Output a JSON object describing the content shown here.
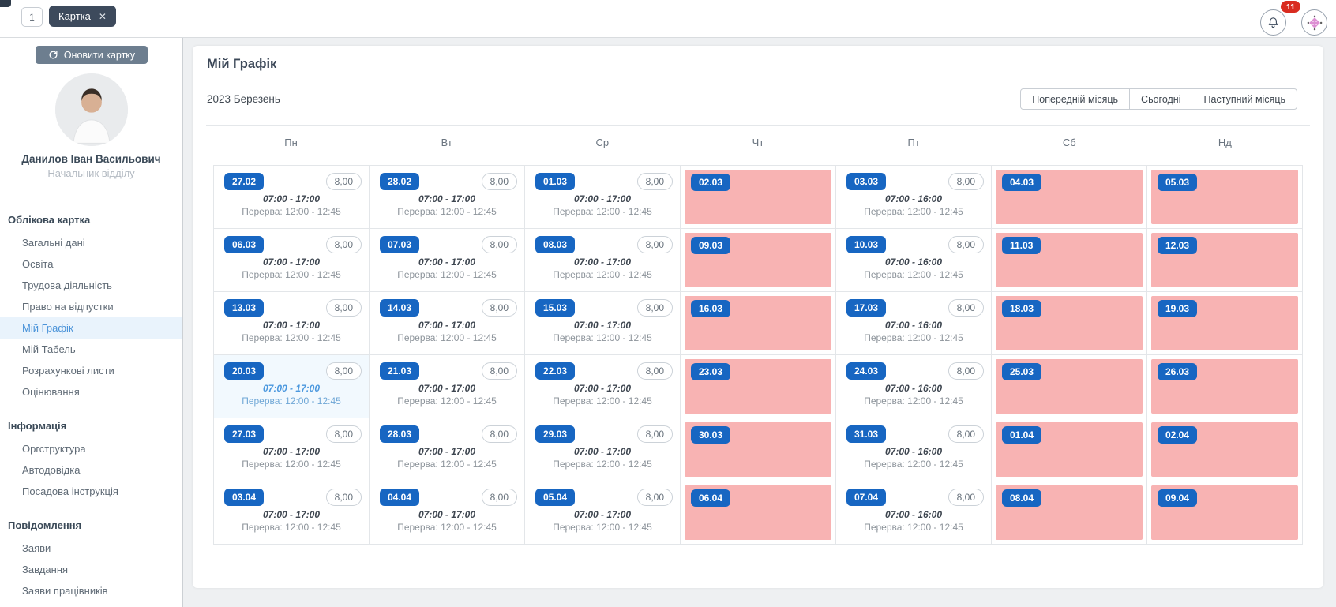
{
  "colors": {
    "accent_blue": "#1766c2",
    "off_pink": "#f8b3b3",
    "tab_dark": "#3d4a5c",
    "badge_red": "#d92c20",
    "active_link": "#4a93d9"
  },
  "topbar": {
    "tab_number": "1",
    "tab_label": "Картка",
    "close_glyph": "✕",
    "notification_count": "11"
  },
  "sidebar": {
    "update_button": "Оновити картку",
    "user": {
      "name": "Данилов Іван Васильович",
      "position": "Начальник відділу"
    },
    "sections": [
      {
        "title": "Облікова картка",
        "active": "Мій Графік",
        "items": [
          "Загальні дані",
          "Освіта",
          "Трудова діяльність",
          "Право на відпустки",
          "Мій Графік",
          "Мій Табель",
          "Розрахункові листи",
          "Оцінювання"
        ]
      },
      {
        "title": "Інформація",
        "items": [
          "Оргструктура",
          "Автодовідка",
          "Посадова інструкція"
        ]
      },
      {
        "title": "Повідомлення",
        "items": [
          "Заяви",
          "Завдання",
          "Заяви працівників"
        ]
      }
    ]
  },
  "schedule": {
    "title": "Мій Графік",
    "month_label": "2023 Березень",
    "nav": {
      "prev": "Попередній місяць",
      "today": "Сьогодні",
      "next": "Наступний місяць"
    },
    "weekdays": [
      "Пн",
      "Вт",
      "Ср",
      "Чт",
      "Пт",
      "Сб",
      "Нд"
    ],
    "weeks": [
      [
        {
          "date": "27.02",
          "type": "work",
          "hours": "8,00",
          "time": "07:00 - 17:00",
          "break_time": "Перерва: 12:00 - 12:45"
        },
        {
          "date": "28.02",
          "type": "work",
          "hours": "8,00",
          "time": "07:00 - 17:00",
          "break_time": "Перерва: 12:00 - 12:45"
        },
        {
          "date": "01.03",
          "type": "work",
          "hours": "8,00",
          "time": "07:00 - 17:00",
          "break_time": "Перерва: 12:00 - 12:45"
        },
        {
          "date": "02.03",
          "type": "off"
        },
        {
          "date": "03.03",
          "type": "work",
          "hours": "8,00",
          "time": "07:00 - 16:00",
          "break_time": "Перерва: 12:00 - 12:45"
        },
        {
          "date": "04.03",
          "type": "off"
        },
        {
          "date": "05.03",
          "type": "off"
        }
      ],
      [
        {
          "date": "06.03",
          "type": "work",
          "hours": "8,00",
          "time": "07:00 - 17:00",
          "break_time": "Перерва: 12:00 - 12:45"
        },
        {
          "date": "07.03",
          "type": "work",
          "hours": "8,00",
          "time": "07:00 - 17:00",
          "break_time": "Перерва: 12:00 - 12:45"
        },
        {
          "date": "08.03",
          "type": "work",
          "hours": "8,00",
          "time": "07:00 - 17:00",
          "break_time": "Перерва: 12:00 - 12:45"
        },
        {
          "date": "09.03",
          "type": "off"
        },
        {
          "date": "10.03",
          "type": "work",
          "hours": "8,00",
          "time": "07:00 - 16:00",
          "break_time": "Перерва: 12:00 - 12:45"
        },
        {
          "date": "11.03",
          "type": "off"
        },
        {
          "date": "12.03",
          "type": "off"
        }
      ],
      [
        {
          "date": "13.03",
          "type": "work",
          "hours": "8,00",
          "time": "07:00 - 17:00",
          "break_time": "Перерва: 12:00 - 12:45"
        },
        {
          "date": "14.03",
          "type": "work",
          "hours": "8,00",
          "time": "07:00 - 17:00",
          "break_time": "Перерва: 12:00 - 12:45"
        },
        {
          "date": "15.03",
          "type": "work",
          "hours": "8,00",
          "time": "07:00 - 17:00",
          "break_time": "Перерва: 12:00 - 12:45"
        },
        {
          "date": "16.03",
          "type": "off"
        },
        {
          "date": "17.03",
          "type": "work",
          "hours": "8,00",
          "time": "07:00 - 16:00",
          "break_time": "Перерва: 12:00 - 12:45"
        },
        {
          "date": "18.03",
          "type": "off"
        },
        {
          "date": "19.03",
          "type": "off"
        }
      ],
      [
        {
          "date": "20.03",
          "type": "work",
          "today": true,
          "hours": "8,00",
          "time": "07:00 - 17:00",
          "break_time": "Перерва: 12:00 - 12:45"
        },
        {
          "date": "21.03",
          "type": "work",
          "hours": "8,00",
          "time": "07:00 - 17:00",
          "break_time": "Перерва: 12:00 - 12:45"
        },
        {
          "date": "22.03",
          "type": "work",
          "hours": "8,00",
          "time": "07:00 - 17:00",
          "break_time": "Перерва: 12:00 - 12:45"
        },
        {
          "date": "23.03",
          "type": "off"
        },
        {
          "date": "24.03",
          "type": "work",
          "hours": "8,00",
          "time": "07:00 - 16:00",
          "break_time": "Перерва: 12:00 - 12:45"
        },
        {
          "date": "25.03",
          "type": "off"
        },
        {
          "date": "26.03",
          "type": "off"
        }
      ],
      [
        {
          "date": "27.03",
          "type": "work",
          "hours": "8,00",
          "time": "07:00 - 17:00",
          "break_time": "Перерва: 12:00 - 12:45"
        },
        {
          "date": "28.03",
          "type": "work",
          "hours": "8,00",
          "time": "07:00 - 17:00",
          "break_time": "Перерва: 12:00 - 12:45"
        },
        {
          "date": "29.03",
          "type": "work",
          "hours": "8,00",
          "time": "07:00 - 17:00",
          "break_time": "Перерва: 12:00 - 12:45"
        },
        {
          "date": "30.03",
          "type": "off"
        },
        {
          "date": "31.03",
          "type": "work",
          "hours": "8,00",
          "time": "07:00 - 16:00",
          "break_time": "Перерва: 12:00 - 12:45"
        },
        {
          "date": "01.04",
          "type": "off"
        },
        {
          "date": "02.04",
          "type": "off"
        }
      ],
      [
        {
          "date": "03.04",
          "type": "work",
          "hours": "8,00",
          "time": "07:00 - 17:00",
          "break_time": "Перерва: 12:00 - 12:45"
        },
        {
          "date": "04.04",
          "type": "work",
          "hours": "8,00",
          "time": "07:00 - 17:00",
          "break_time": "Перерва: 12:00 - 12:45"
        },
        {
          "date": "05.04",
          "type": "work",
          "hours": "8,00",
          "time": "07:00 - 17:00",
          "break_time": "Перерва: 12:00 - 12:45"
        },
        {
          "date": "06.04",
          "type": "off"
        },
        {
          "date": "07.04",
          "type": "work",
          "hours": "8,00",
          "time": "07:00 - 16:00",
          "break_time": "Перерва: 12:00 - 12:45"
        },
        {
          "date": "08.04",
          "type": "off"
        },
        {
          "date": "09.04",
          "type": "off"
        }
      ]
    ]
  }
}
